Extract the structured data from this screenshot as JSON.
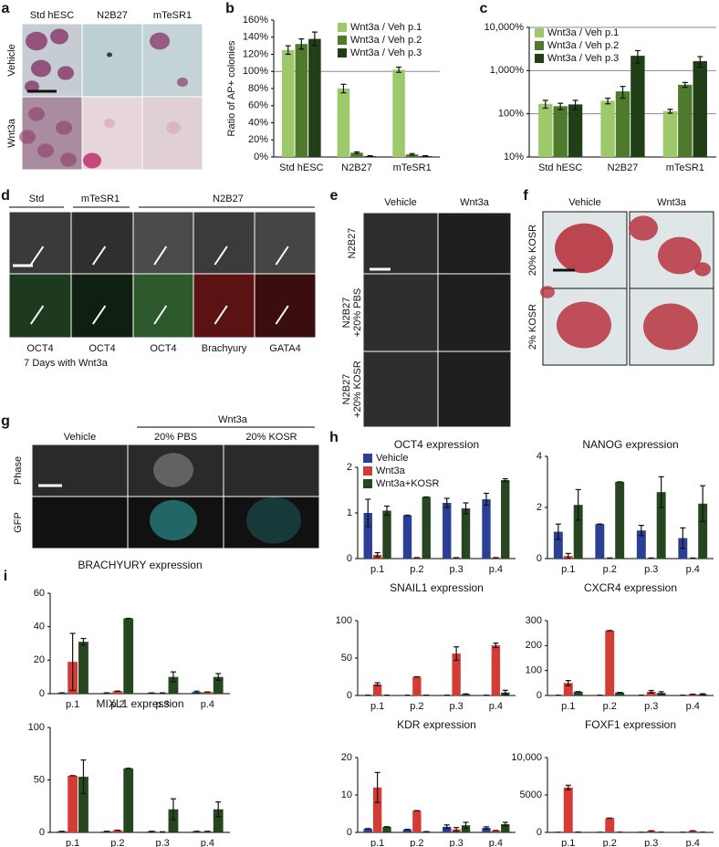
{
  "figure_panels": {
    "a": {
      "label": "a",
      "columns": [
        "Std hESC",
        "N2B27",
        "mTeSR1"
      ],
      "rows": [
        "Vehicle",
        "Wnt3a"
      ]
    },
    "d": {
      "label": "d",
      "groups": [
        "Std",
        "mTeSR1",
        "N2B27"
      ],
      "captions": [
        "OCT4",
        "OCT4",
        "OCT4",
        "Brachyury",
        "GATA4"
      ],
      "note": "7 Days with Wnt3a"
    },
    "e": {
      "label": "e",
      "columns": [
        "Vehicle",
        "Wnt3a"
      ],
      "rows": [
        [
          "N2B27"
        ],
        [
          "N2B27",
          "+20% PBS"
        ],
        [
          "N2B27",
          "+20% KOSR"
        ]
      ]
    },
    "f": {
      "label": "f",
      "columns": [
        "Vehicle",
        "Wnt3a"
      ],
      "rows": [
        "20% KOSR",
        "2% KOSR"
      ]
    },
    "g": {
      "label": "g",
      "header": "Wnt3a",
      "columns": [
        "Vehicle",
        "20% PBS",
        "20% KOSR"
      ],
      "rows": [
        "Phase",
        "GFP"
      ]
    }
  },
  "chart_data": [
    {
      "type": "bar",
      "panel": "b",
      "ylabel": "Ratio of AP+ colonies",
      "categories": [
        "Std hESC",
        "N2B27",
        "mTeSR1"
      ],
      "series": [
        {
          "name": "Wnt3a / Veh p.1",
          "color": "#9dc96b",
          "values": [
            125,
            80,
            102
          ],
          "errors": [
            5,
            5,
            3
          ]
        },
        {
          "name": "Wnt3a / Veh p.2",
          "color": "#4d7a2b",
          "values": [
            132,
            5,
            3
          ],
          "errors": [
            6,
            1,
            1
          ]
        },
        {
          "name": "Wnt3a / Veh p.3",
          "color": "#213f17",
          "values": [
            138,
            1,
            1
          ],
          "errors": [
            8,
            0.5,
            0.5
          ]
        }
      ],
      "ylim": [
        0,
        160
      ],
      "yticks": [
        {
          "value": 0,
          "label": "0%"
        },
        {
          "value": 20,
          "label": "20%"
        },
        {
          "value": 40,
          "label": "40%"
        },
        {
          "value": 60,
          "label": "60%"
        },
        {
          "value": 80,
          "label": "80%"
        },
        {
          "value": 100,
          "label": "100%"
        },
        {
          "value": 120,
          "label": "120%"
        },
        {
          "value": 140,
          "label": "140%"
        },
        {
          "value": 160,
          "label": "160%"
        }
      ],
      "reference_line": 100,
      "grid": false,
      "legend": "upper right"
    },
    {
      "type": "bar",
      "panel": "c",
      "categories": [
        "Std hESC",
        "N2B27",
        "mTeSR1"
      ],
      "series": [
        {
          "name": "Wnt3a / Veh p.1",
          "color": "#9dc96b",
          "values": [
            170,
            200,
            115
          ],
          "errors": [
            35,
            30,
            12
          ]
        },
        {
          "name": "Wnt3a / Veh p.2",
          "color": "#4d7a2b",
          "values": [
            150,
            330,
            470
          ],
          "errors": [
            25,
            100,
            60
          ]
        },
        {
          "name": "Wnt3a / Veh p.3",
          "color": "#213f17",
          "values": [
            165,
            2200,
            1650
          ],
          "errors": [
            40,
            700,
            450
          ]
        }
      ],
      "ylim": [
        10,
        10000
      ],
      "log_scale": true,
      "yticks": [
        {
          "value": 10,
          "label": "10%"
        },
        {
          "value": 100,
          "label": "100%"
        },
        {
          "value": 1000,
          "label": "1,000%"
        },
        {
          "value": 10000,
          "label": "10,000%"
        }
      ],
      "grid": true,
      "legend": "upper left"
    },
    {
      "type": "bar",
      "panel": "h",
      "title": "OCT4 expression",
      "categories": [
        "p.1",
        "p.2",
        "p.3",
        "p.4"
      ],
      "series": [
        {
          "name": "Vehicle",
          "color": "#2b3f95",
          "values": [
            1.0,
            0.95,
            1.22,
            1.3
          ],
          "errors": [
            0.3,
            0,
            0.1,
            0.13
          ]
        },
        {
          "name": "Wnt3a",
          "color": "#d33b34",
          "values": [
            0.08,
            0.02,
            0.02,
            0.02
          ],
          "errors": [
            0.05,
            0,
            0,
            0
          ]
        },
        {
          "name": "Wnt3a+KOSR",
          "color": "#26461f",
          "values": [
            1.05,
            1.35,
            1.1,
            1.72
          ],
          "errors": [
            0.1,
            0,
            0.12,
            0.03
          ]
        }
      ],
      "ylim": [
        0,
        2
      ],
      "yticks": [
        0,
        1,
        2
      ],
      "grid": false,
      "legend": "upper left"
    },
    {
      "type": "bar",
      "title": "NANOG expression",
      "categories": [
        "p.1",
        "p.2",
        "p.3",
        "p.4"
      ],
      "series": [
        {
          "color": "#2b3f95",
          "values": [
            1.05,
            1.35,
            1.1,
            0.8
          ],
          "errors": [
            0.3,
            0,
            0.2,
            0.4
          ]
        },
        {
          "color": "#d33b34",
          "values": [
            0.1,
            0.02,
            0.02,
            0.02
          ],
          "errors": [
            0.1,
            0,
            0,
            0
          ]
        },
        {
          "color": "#26461f",
          "values": [
            2.1,
            3.0,
            2.6,
            2.15
          ],
          "errors": [
            0.6,
            0,
            0.6,
            0.7
          ]
        }
      ],
      "ylim": [
        0,
        4
      ],
      "yticks": [
        0,
        2,
        4
      ],
      "grid": false
    },
    {
      "type": "bar",
      "panel": "i",
      "title": "BRACHYURY expression",
      "categories": [
        "p.1",
        "p.2",
        "p.3",
        "p.4"
      ],
      "series": [
        {
          "color": "#2b3f95",
          "values": [
            0.5,
            0.5,
            0.5,
            1
          ],
          "errors": [
            0,
            0,
            0,
            0.5
          ]
        },
        {
          "color": "#d33b34",
          "values": [
            19,
            1.5,
            0.5,
            1
          ],
          "errors": [
            17,
            0,
            0,
            0
          ]
        },
        {
          "color": "#26461f",
          "values": [
            31,
            45,
            10,
            10
          ],
          "errors": [
            2,
            0,
            3,
            2
          ]
        }
      ],
      "ylim": [
        0,
        60
      ],
      "yticks": [
        0,
        20,
        40,
        60
      ],
      "grid": false
    },
    {
      "type": "bar",
      "title": "SNAIL1 expression",
      "categories": [
        "p.1",
        "p.2",
        "p.3",
        "p.4"
      ],
      "series": [
        {
          "color": "#2b3f95",
          "values": [
            0.5,
            0.5,
            0.5,
            0.5
          ],
          "errors": [
            0,
            0,
            0,
            0
          ]
        },
        {
          "color": "#d33b34",
          "values": [
            15,
            25,
            56,
            67
          ],
          "errors": [
            2,
            0,
            9,
            3
          ]
        },
        {
          "color": "#26461f",
          "values": [
            0.5,
            0.5,
            2,
            4
          ],
          "errors": [
            0,
            0,
            0,
            3
          ]
        }
      ],
      "ylim": [
        0,
        100
      ],
      "yticks": [
        0,
        50,
        100
      ],
      "grid": false
    },
    {
      "type": "bar",
      "title": "CXCR4 expression",
      "categories": [
        "p.1",
        "p.2",
        "p.3",
        "p.4"
      ],
      "series": [
        {
          "color": "#2b3f95",
          "values": [
            1,
            1,
            1,
            1
          ],
          "errors": [
            0,
            0,
            0,
            0
          ]
        },
        {
          "color": "#d33b34",
          "values": [
            50,
            260,
            15,
            5
          ],
          "errors": [
            10,
            0,
            5,
            0
          ]
        },
        {
          "color": "#26461f",
          "values": [
            15,
            12,
            10,
            5
          ],
          "errors": [
            0,
            0,
            5,
            2
          ]
        }
      ],
      "ylim": [
        0,
        300
      ],
      "yticks": [
        0,
        100,
        200,
        300
      ],
      "grid": false
    },
    {
      "type": "bar",
      "title": "MIXL1 expression",
      "categories": [
        "p.1",
        "p.2",
        "p.3",
        "p.4"
      ],
      "series": [
        {
          "color": "#2b3f95",
          "values": [
            1,
            1,
            1,
            1
          ],
          "errors": [
            0,
            0,
            0,
            0
          ]
        },
        {
          "color": "#d33b34",
          "values": [
            54,
            2,
            0.5,
            1
          ],
          "errors": [
            0,
            0,
            0,
            0
          ]
        },
        {
          "color": "#26461f",
          "values": [
            53,
            61,
            22,
            22
          ],
          "errors": [
            16,
            0,
            10,
            7
          ]
        }
      ],
      "ylim": [
        0,
        100
      ],
      "yticks": [
        0,
        50,
        100
      ],
      "grid": false
    },
    {
      "type": "bar",
      "title": "KDR expression",
      "categories": [
        "p.1",
        "p.2",
        "p.3",
        "p.4"
      ],
      "series": [
        {
          "color": "#2b3f95",
          "values": [
            1,
            0.8,
            1.5,
            1.2
          ],
          "errors": [
            0,
            0,
            0.5,
            0.3
          ]
        },
        {
          "color": "#d33b34",
          "values": [
            12,
            5.8,
            0.8,
            0.5
          ],
          "errors": [
            4,
            0,
            0.5,
            0
          ]
        },
        {
          "color": "#26461f",
          "values": [
            1.5,
            0.2,
            1.9,
            2.2
          ],
          "errors": [
            0,
            0,
            0.8,
            0.5
          ]
        }
      ],
      "ylim": [
        0,
        20
      ],
      "yticks": [
        0,
        10,
        20
      ],
      "grid": false
    },
    {
      "type": "bar",
      "title": "FOXF1 expression",
      "categories": [
        "p.1",
        "p.2",
        "p.3",
        "p.4"
      ],
      "series": [
        {
          "color": "#2b3f95",
          "values": [
            10,
            10,
            10,
            10
          ],
          "errors": [
            0,
            0,
            0,
            0
          ]
        },
        {
          "color": "#d33b34",
          "values": [
            6000,
            1900,
            200,
            200
          ],
          "errors": [
            300,
            0,
            0,
            0
          ]
        },
        {
          "color": "#26461f",
          "values": [
            50,
            20,
            20,
            20
          ],
          "errors": [
            0,
            0,
            0,
            0
          ]
        }
      ],
      "ylim": [
        0,
        10000
      ],
      "yticks": [
        0,
        5000,
        {
          "value": 10000,
          "label": "10,000"
        }
      ],
      "grid": false
    }
  ]
}
